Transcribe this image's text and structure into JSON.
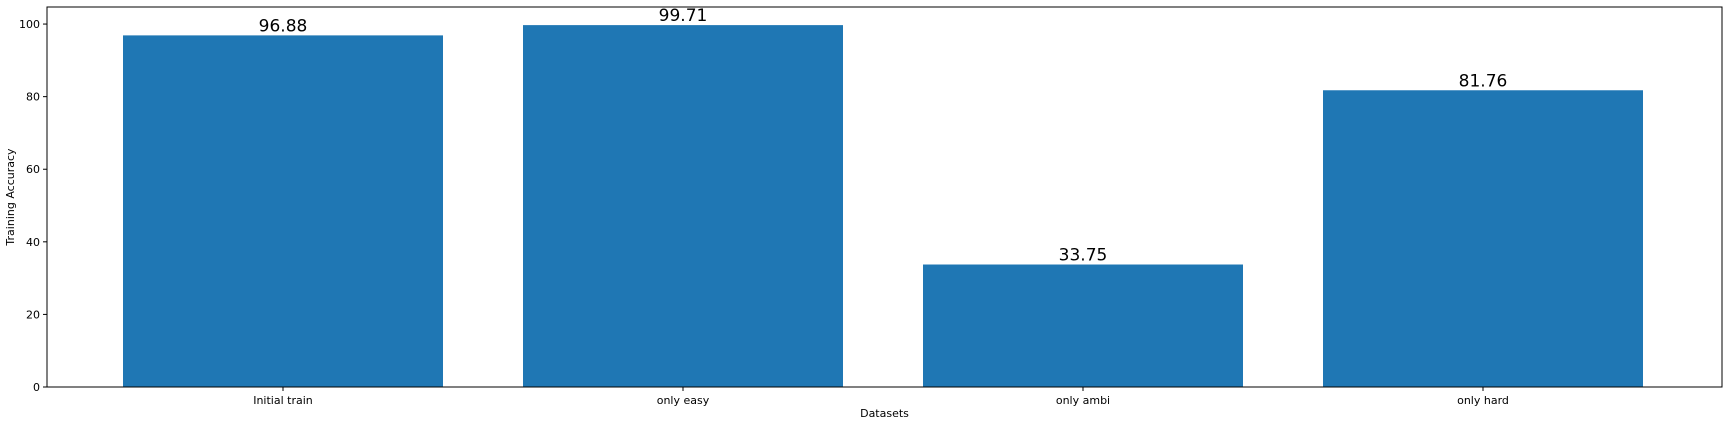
{
  "chart_data": {
    "type": "bar",
    "categories": [
      "Initial train",
      "only easy",
      "only ambi",
      "only hard"
    ],
    "values": [
      96.88,
      99.71,
      33.75,
      81.76
    ],
    "data_labels": [
      "96.88",
      "99.71",
      "33.75",
      "81.76"
    ],
    "title": "",
    "xlabel": "Datasets",
    "ylabel": "Training Accuracy",
    "ylim": [
      0,
      104.7
    ],
    "yticks": [
      0,
      20,
      40,
      60,
      80,
      100
    ],
    "ytick_labels": [
      "0",
      "20",
      "40",
      "60",
      "80",
      "100"
    ],
    "bar_color": "#1f77b4",
    "grid": false,
    "legend": "none"
  }
}
